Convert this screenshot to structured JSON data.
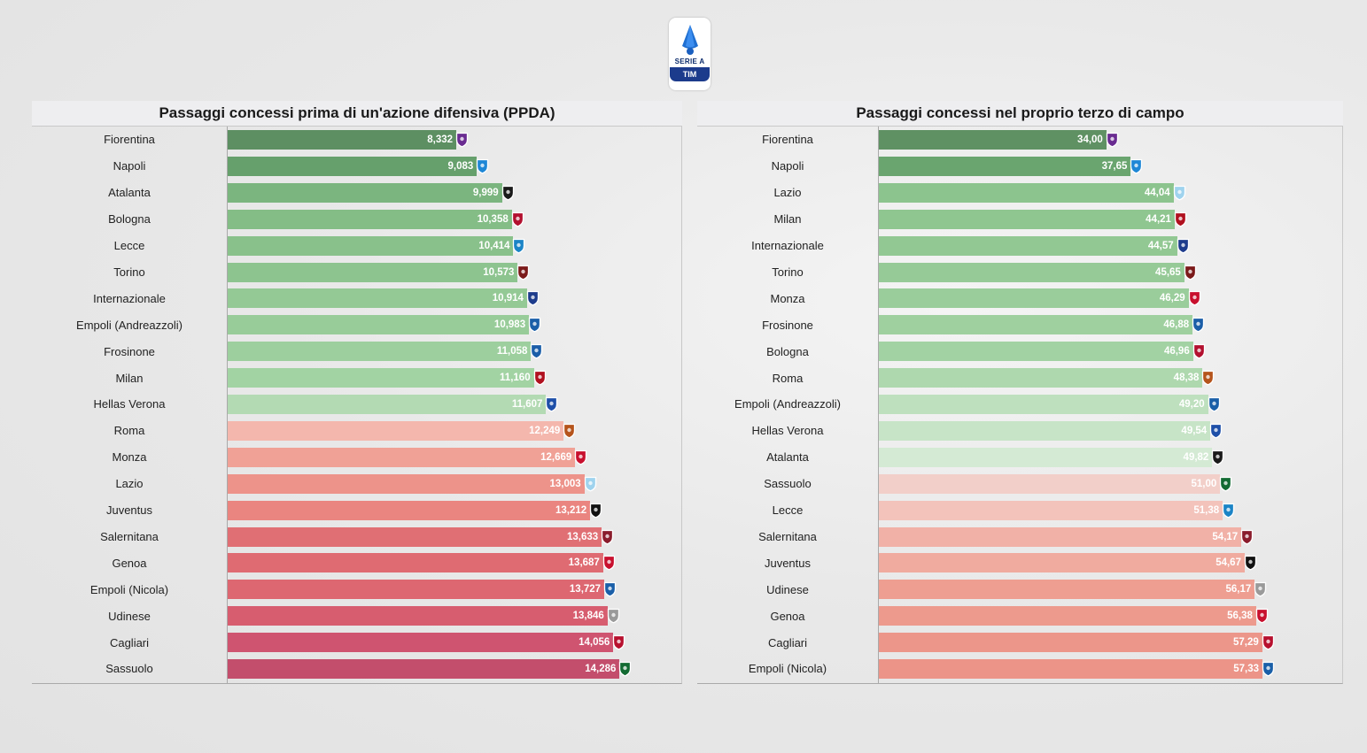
{
  "header": {
    "logo_line1": "SERIE A",
    "logo_line2": "TIM"
  },
  "chart_data": [
    {
      "type": "bar",
      "orientation": "horizontal",
      "title": "Passaggi concessi prima di un'azione difensiva (PPDA)",
      "xlim": [
        0,
        15.5
      ],
      "grid": false,
      "categories": [
        "Fiorentina",
        "Napoli",
        "Atalanta",
        "Bologna",
        "Lecce",
        "Torino",
        "Internazionale",
        "Empoli (Andreazzoli)",
        "Frosinone",
        "Milan",
        "Hellas Verona",
        "Roma",
        "Monza",
        "Lazio",
        "Juventus",
        "Salernitana",
        "Genoa",
        "Empoli (Nicola)",
        "Udinese",
        "Cagliari",
        "Sassuolo"
      ],
      "values": [
        8.332,
        9.083,
        9.999,
        10.358,
        10.414,
        10.573,
        10.914,
        10.983,
        11.058,
        11.16,
        11.607,
        12.249,
        12.669,
        13.003,
        13.212,
        13.633,
        13.687,
        13.727,
        13.846,
        14.056,
        14.286
      ],
      "value_labels": [
        "8,332",
        "9,083",
        "9,999",
        "10,358",
        "10,414",
        "10,573",
        "10,914",
        "10,983",
        "11,058",
        "11,160",
        "11,607",
        "12,249",
        "12,669",
        "13,003",
        "13,212",
        "13,633",
        "13,687",
        "13,727",
        "13,846",
        "14,056",
        "14,286"
      ],
      "colors": [
        "#5d8f62",
        "#66a06c",
        "#7bb57f",
        "#84bd86",
        "#89c18b",
        "#8dc48f",
        "#94c995",
        "#98cc99",
        "#9dcf9e",
        "#a2d3a3",
        "#b3dab3",
        "#f4b7ad",
        "#f0a196",
        "#ed938a",
        "#ea8580",
        "#e06f74",
        "#df6b72",
        "#dd6771",
        "#d75d6f",
        "#cf5470",
        "#c34e6c"
      ],
      "crest_icons": [
        "fiorentina-crest-icon",
        "napoli-crest-icon",
        "atalanta-crest-icon",
        "bologna-crest-icon",
        "lecce-crest-icon",
        "torino-crest-icon",
        "inter-crest-icon",
        "empoli-crest-icon",
        "frosinone-crest-icon",
        "milan-crest-icon",
        "verona-crest-icon",
        "roma-crest-icon",
        "monza-crest-icon",
        "lazio-crest-icon",
        "juventus-crest-icon",
        "salernitana-crest-icon",
        "genoa-crest-icon",
        "empoli-crest-icon",
        "udinese-crest-icon",
        "cagliari-crest-icon",
        "sassuolo-crest-icon"
      ],
      "crest_colors": [
        "#6a2c91",
        "#1e87d6",
        "#1a1a1a",
        "#b2102f",
        "#1b84c6",
        "#7b1a1a",
        "#1e3c8c",
        "#1a5fa8",
        "#1b5ea8",
        "#b0101f",
        "#1e4fa8",
        "#b5541c",
        "#c8102e",
        "#9fd3ee",
        "#111111",
        "#8a1c2c",
        "#c8102e",
        "#1a5fa8",
        "#9a9a9a",
        "#b7102e",
        "#136b33"
      ]
    },
    {
      "type": "bar",
      "orientation": "horizontal",
      "title": "Passaggi concessi nel proprio terzo di campo",
      "xlim": [
        0,
        65
      ],
      "grid": false,
      "categories": [
        "Fiorentina",
        "Napoli",
        "Lazio",
        "Milan",
        "Internazionale",
        "Torino",
        "Monza",
        "Frosinone",
        "Bologna",
        "Roma",
        "Empoli (Andreazzoli)",
        "Hellas Verona",
        "Atalanta",
        "Sassuolo",
        "Lecce",
        "Salernitana",
        "Juventus",
        "Udinese",
        "Genoa",
        "Cagliari",
        "Empoli (Nicola)"
      ],
      "values": [
        34.0,
        37.65,
        44.04,
        44.21,
        44.57,
        45.65,
        46.29,
        46.88,
        46.96,
        48.38,
        49.2,
        49.54,
        49.82,
        51.0,
        51.38,
        54.17,
        54.67,
        56.17,
        56.38,
        57.29,
        57.33
      ],
      "value_labels": [
        "34,00",
        "37,65",
        "44,04",
        "44,21",
        "44,57",
        "45,65",
        "46,29",
        "46,88",
        "46,96",
        "48,38",
        "49,20",
        "49,54",
        "49,82",
        "51,00",
        "51,38",
        "54,17",
        "54,67",
        "56,17",
        "56,38",
        "57,29",
        "57,33"
      ],
      "colors": [
        "#5f9163",
        "#6aa56f",
        "#8cc48e",
        "#8fc690",
        "#92c893",
        "#96ca97",
        "#9acd9b",
        "#9fd09f",
        "#a2d2a3",
        "#aed8ae",
        "#bee0be",
        "#c7e4c7",
        "#d4ead4",
        "#f2cfc9",
        "#f3c3bb",
        "#f1b1a7",
        "#f0ab9f",
        "#ee9e91",
        "#ed9a8d",
        "#ec968a",
        "#ec9488"
      ],
      "crest_icons": [
        "fiorentina-crest-icon",
        "napoli-crest-icon",
        "lazio-crest-icon",
        "milan-crest-icon",
        "inter-crest-icon",
        "torino-crest-icon",
        "monza-crest-icon",
        "frosinone-crest-icon",
        "bologna-crest-icon",
        "roma-crest-icon",
        "empoli-crest-icon",
        "verona-crest-icon",
        "atalanta-crest-icon",
        "sassuolo-crest-icon",
        "lecce-crest-icon",
        "salernitana-crest-icon",
        "juventus-crest-icon",
        "udinese-crest-icon",
        "genoa-crest-icon",
        "cagliari-crest-icon",
        "empoli-crest-icon"
      ],
      "crest_colors": [
        "#6a2c91",
        "#1e87d6",
        "#9fd3ee",
        "#b0101f",
        "#1e3c8c",
        "#7b1a1a",
        "#c8102e",
        "#1b5ea8",
        "#b2102f",
        "#b5541c",
        "#1a5fa8",
        "#1e4fa8",
        "#1a1a1a",
        "#136b33",
        "#1b84c6",
        "#8a1c2c",
        "#111111",
        "#9a9a9a",
        "#c8102e",
        "#b7102e",
        "#1a5fa8"
      ]
    }
  ]
}
